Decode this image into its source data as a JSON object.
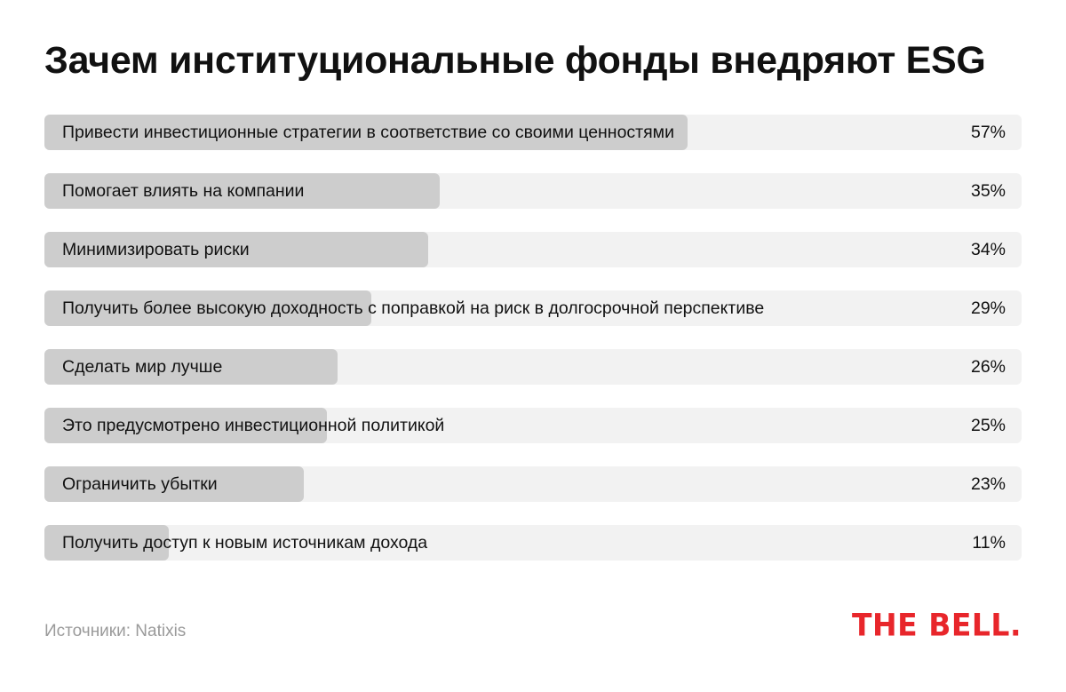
{
  "title": "Зачем институциональные фонды внедряют ESG",
  "source": "Источники: Natixis",
  "logo": "THE BELL.",
  "colors": {
    "track": "#f2f2f2",
    "bar": "#cdcdcd",
    "logo": "#e8262b"
  },
  "chart_data": {
    "type": "bar",
    "orientation": "horizontal",
    "title": "Зачем институциональные фонды внедряют ESG",
    "unit": "%",
    "xlim": [
      0,
      100
    ],
    "grid": false,
    "categories": [
      "Привести инвестиционные стратегии в соответствие со своими ценностями",
      "Помогает влиять на компании",
      "Минимизировать риски",
      "Получить более высокую доходность с поправкой на риск в долгосрочной перспективе",
      "Сделать мир лучше",
      "Это предусмотрено инвестиционной политикой",
      "Ограничить убытки",
      "Получить доступ к новым источникам дохода"
    ],
    "values": [
      57,
      35,
      34,
      29,
      26,
      25,
      23,
      11
    ],
    "value_labels": [
      "57%",
      "35%",
      "34%",
      "29%",
      "26%",
      "25%",
      "23%",
      "11%"
    ]
  }
}
